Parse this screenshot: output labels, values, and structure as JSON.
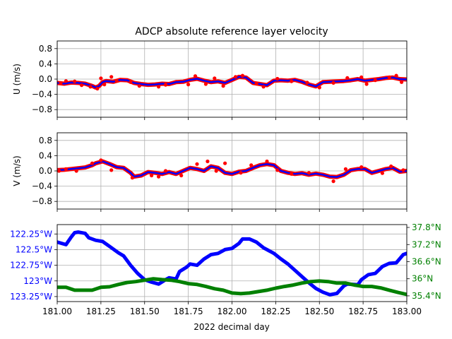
{
  "figure": {
    "title": "ADCP absolute reference layer velocity",
    "xlabel": "2022 decimal day"
  },
  "colors": {
    "u_points": "#ff0000",
    "u_line": "#0000ff",
    "v_points": "#ff0000",
    "v_line": "#0000ff",
    "lon_line": "#0000ff",
    "lat_line": "#008000",
    "grid": "#b0b0b0",
    "axes": "#000000"
  },
  "chart_data": [
    {
      "type": "scatter",
      "panel": "u",
      "title": "ADCP absolute reference layer velocity",
      "xlabel": "",
      "ylabel": "U (m/s)",
      "xlim": [
        181.0,
        183.0
      ],
      "ylim": [
        -1.0,
        1.0
      ],
      "yticks": [
        -0.8,
        -0.4,
        0.0,
        0.4,
        0.8
      ],
      "yticklabels": [
        "−0.8",
        "−0.4",
        "0.0",
        "0.4",
        "0.8"
      ],
      "grid": true,
      "series": [
        {
          "style": "line",
          "x": [
            181.0,
            181.04,
            181.08,
            181.12,
            181.16,
            181.2,
            181.22,
            181.24,
            181.26,
            181.28,
            181.32,
            181.36,
            181.4,
            181.44,
            181.48,
            181.52,
            181.56,
            181.6,
            181.64,
            181.68,
            181.72,
            181.76,
            181.8,
            181.84,
            181.88,
            181.92,
            181.96,
            182.0,
            182.04,
            182.08,
            182.12,
            182.16,
            182.2,
            182.24,
            182.28,
            182.32,
            182.36,
            182.4,
            182.44,
            182.48,
            182.52,
            182.56,
            182.6,
            182.64,
            182.68,
            182.72,
            182.76,
            182.8,
            182.84,
            182.88,
            182.92,
            182.96,
            183.0
          ],
          "y": [
            -0.1,
            -0.12,
            -0.09,
            -0.1,
            -0.12,
            -0.18,
            -0.22,
            -0.18,
            -0.08,
            -0.05,
            -0.07,
            -0.02,
            -0.03,
            -0.1,
            -0.13,
            -0.15,
            -0.14,
            -0.12,
            -0.13,
            -0.08,
            -0.07,
            -0.02,
            0.01,
            -0.04,
            -0.08,
            -0.06,
            -0.1,
            -0.02,
            0.06,
            0.04,
            -0.1,
            -0.13,
            -0.16,
            -0.04,
            -0.03,
            -0.04,
            -0.02,
            -0.07,
            -0.14,
            -0.19,
            -0.08,
            -0.07,
            -0.06,
            -0.05,
            -0.03,
            0.0,
            -0.04,
            -0.02,
            0.0,
            0.03,
            0.04,
            0.0,
            -0.01
          ]
        },
        {
          "style": "points",
          "x": [
            181.02,
            181.05,
            181.1,
            181.14,
            181.19,
            181.23,
            181.25,
            181.27,
            181.31,
            181.34,
            181.42,
            181.47,
            181.58,
            181.62,
            181.75,
            181.79,
            181.85,
            181.9,
            181.95,
            182.02,
            182.06,
            182.14,
            182.18,
            182.26,
            182.34,
            182.43,
            182.5,
            182.58,
            182.66,
            182.74,
            182.77,
            182.82,
            182.9,
            182.94,
            182.97
          ],
          "y": [
            -0.1,
            -0.05,
            -0.06,
            -0.16,
            -0.2,
            -0.25,
            0.02,
            -0.14,
            0.06,
            -0.04,
            -0.08,
            -0.18,
            -0.2,
            -0.15,
            -0.14,
            0.08,
            -0.13,
            0.02,
            -0.18,
            0.06,
            0.09,
            -0.12,
            -0.2,
            0.01,
            -0.06,
            -0.09,
            -0.22,
            -0.1,
            0.03,
            0.05,
            -0.13,
            -0.03,
            0.05,
            0.09,
            -0.08
          ]
        }
      ]
    },
    {
      "type": "scatter",
      "panel": "v",
      "title": "",
      "xlabel": "",
      "ylabel": "V (m/s)",
      "xlim": [
        181.0,
        183.0
      ],
      "ylim": [
        -1.0,
        1.0
      ],
      "yticks": [
        -0.8,
        -0.4,
        0.0,
        0.4,
        0.8
      ],
      "yticklabels": [
        "−0.8",
        "−0.4",
        "0.0",
        "0.4",
        "0.8"
      ],
      "grid": true,
      "series": [
        {
          "style": "line",
          "x": [
            181.0,
            181.04,
            181.08,
            181.12,
            181.16,
            181.2,
            181.22,
            181.26,
            181.3,
            181.34,
            181.38,
            181.42,
            181.44,
            181.48,
            181.52,
            181.56,
            181.6,
            181.64,
            181.68,
            181.72,
            181.76,
            181.8,
            181.84,
            181.88,
            181.92,
            181.96,
            182.0,
            182.04,
            182.08,
            182.12,
            182.16,
            182.2,
            182.24,
            182.28,
            182.32,
            182.36,
            182.4,
            182.44,
            182.48,
            182.52,
            182.56,
            182.6,
            182.64,
            182.68,
            182.72,
            182.76,
            182.8,
            182.84,
            182.88,
            182.92,
            182.96,
            183.0
          ],
          "y": [
            0.02,
            0.03,
            0.05,
            0.07,
            0.09,
            0.15,
            0.2,
            0.25,
            0.18,
            0.1,
            0.08,
            -0.05,
            -0.15,
            -0.12,
            -0.03,
            -0.05,
            -0.08,
            -0.03,
            -0.08,
            0.0,
            0.08,
            0.05,
            0.0,
            0.12,
            0.08,
            -0.05,
            -0.08,
            -0.02,
            0.0,
            0.08,
            0.15,
            0.18,
            0.15,
            0.0,
            -0.05,
            -0.08,
            -0.06,
            -0.1,
            -0.07,
            -0.1,
            -0.15,
            -0.16,
            -0.1,
            0.02,
            0.05,
            0.05,
            -0.05,
            0.0,
            0.05,
            0.08,
            -0.02,
            0.0
          ]
        },
        {
          "style": "points",
          "x": [
            181.01,
            181.05,
            181.11,
            181.2,
            181.25,
            181.31,
            181.43,
            181.54,
            181.58,
            181.62,
            181.71,
            181.8,
            181.86,
            181.91,
            181.96,
            182.05,
            182.11,
            182.2,
            182.26,
            182.34,
            182.44,
            182.58,
            182.65,
            182.74,
            182.86,
            182.91,
            182.98
          ],
          "y": [
            0.0,
            0.05,
            0.0,
            0.2,
            0.28,
            0.02,
            -0.18,
            -0.12,
            -0.15,
            0.0,
            -0.12,
            0.18,
            0.25,
            0.0,
            0.2,
            -0.05,
            0.15,
            0.25,
            0.02,
            -0.08,
            -0.05,
            -0.27,
            0.05,
            0.1,
            -0.06,
            0.12,
            0.02
          ]
        }
      ]
    },
    {
      "type": "line",
      "panel": "position",
      "title": "",
      "xlabel": "2022 decimal day",
      "ylabel": "",
      "xlim": [
        181.0,
        183.0
      ],
      "xticks": [
        181.0,
        181.25,
        181.5,
        181.75,
        182.0,
        182.25,
        182.5,
        182.75,
        183.0
      ],
      "xticklabels": [
        "181.00",
        "181.25",
        "181.50",
        "181.75",
        "182.00",
        "182.25",
        "182.50",
        "182.75",
        "183.00"
      ],
      "grid": true,
      "left_axis": {
        "ylim": [
          -123.33,
          -122.1
        ],
        "yticks": [
          -122.25,
          -122.5,
          -122.75,
          -123.0,
          -123.25
        ],
        "yticklabels": [
          "122.25°W",
          "122.5°W",
          "122.75°W",
          "123°W",
          "123.25°W"
        ]
      },
      "right_axis": {
        "ylim": [
          35.2,
          37.9
        ],
        "yticks": [
          35.4,
          36.0,
          36.6,
          37.2,
          37.8
        ],
        "yticklabels": [
          "35.4°N",
          "36°N",
          "36.6°N",
          "37.2°N",
          "37.8°N"
        ]
      },
      "series": [
        {
          "axis": "left",
          "x": [
            181.0,
            181.05,
            181.08,
            181.1,
            181.12,
            181.16,
            181.18,
            181.22,
            181.26,
            181.3,
            181.35,
            181.38,
            181.42,
            181.46,
            181.5,
            181.54,
            181.58,
            181.62,
            181.64,
            181.68,
            181.7,
            181.74,
            181.76,
            181.8,
            181.84,
            181.88,
            181.92,
            181.96,
            182.0,
            182.04,
            182.06,
            182.1,
            182.14,
            182.18,
            182.24,
            182.28,
            182.32,
            182.36,
            182.4,
            182.44,
            182.48,
            182.52,
            182.56,
            182.6,
            182.64,
            182.66,
            182.72,
            182.74,
            182.78,
            182.82,
            182.86,
            182.9,
            182.94,
            182.98,
            183.0
          ],
          "y": [
            -122.38,
            -122.42,
            -122.3,
            -122.23,
            -122.22,
            -122.24,
            -122.31,
            -122.35,
            -122.37,
            -122.45,
            -122.55,
            -122.6,
            -122.75,
            -122.88,
            -122.98,
            -123.02,
            -123.05,
            -122.98,
            -122.95,
            -122.97,
            -122.85,
            -122.78,
            -122.73,
            -122.75,
            -122.65,
            -122.58,
            -122.56,
            -122.5,
            -122.48,
            -122.4,
            -122.33,
            -122.33,
            -122.38,
            -122.47,
            -122.56,
            -122.65,
            -122.73,
            -122.83,
            -122.93,
            -123.03,
            -123.12,
            -123.18,
            -123.22,
            -123.2,
            -123.08,
            -123.05,
            -123.06,
            -122.98,
            -122.9,
            -122.88,
            -122.77,
            -122.72,
            -122.71,
            -122.58,
            -122.56
          ]
        },
        {
          "axis": "right",
          "x": [
            181.0,
            181.05,
            181.1,
            181.15,
            181.2,
            181.25,
            181.3,
            181.35,
            181.4,
            181.45,
            181.5,
            181.55,
            181.6,
            181.65,
            181.7,
            181.75,
            181.8,
            181.85,
            181.9,
            181.95,
            182.0,
            182.05,
            182.1,
            182.15,
            182.2,
            182.25,
            182.3,
            182.35,
            182.4,
            182.45,
            182.5,
            182.55,
            182.6,
            182.65,
            182.7,
            182.75,
            182.8,
            182.85,
            182.9,
            182.95,
            183.0
          ],
          "y": [
            35.7,
            35.7,
            35.6,
            35.6,
            35.6,
            35.7,
            35.72,
            35.8,
            35.87,
            35.9,
            35.95,
            36.0,
            35.97,
            35.95,
            35.9,
            35.83,
            35.8,
            35.73,
            35.65,
            35.6,
            35.5,
            35.48,
            35.5,
            35.55,
            35.6,
            35.67,
            35.73,
            35.78,
            35.85,
            35.9,
            35.92,
            35.9,
            35.85,
            35.85,
            35.78,
            35.73,
            35.73,
            35.68,
            35.6,
            35.52,
            35.45
          ]
        }
      ]
    }
  ]
}
